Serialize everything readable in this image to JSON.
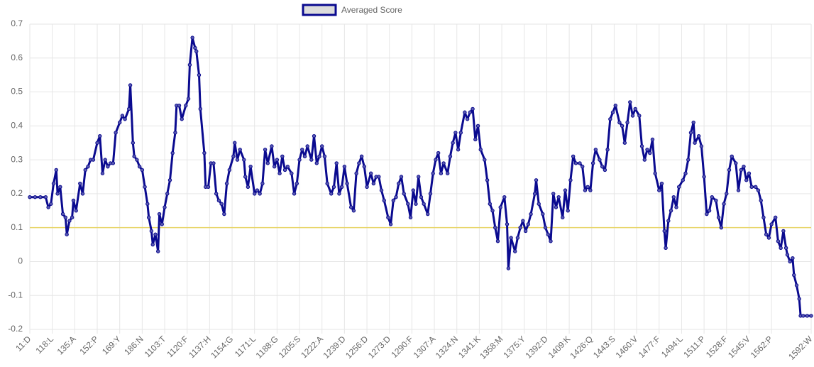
{
  "chart_data": {
    "type": "line",
    "series": [
      {
        "name": "Averaged Score",
        "color": "#0a0a8f",
        "fill": "#dcdcdc",
        "x": [
          1,
          5,
          9,
          13,
          15,
          17,
          19,
          21,
          22,
          24,
          26,
          28,
          29,
          31,
          33,
          34,
          36,
          39,
          41,
          43,
          45,
          47,
          49,
          52,
          54,
          56,
          58,
          60,
          62,
          64,
          66,
          69,
          71,
          73,
          76,
          77,
          79,
          80,
          82,
          84,
          86,
          88,
          90,
          91,
          93,
          94,
          96,
          98,
          99,
          101,
          103,
          105,
          107,
          109,
          111,
          112,
          114,
          116,
          119,
          121,
          122,
          124,
          126,
          127,
          129,
          130,
          133,
          134,
          136,
          138,
          140,
          142,
          144,
          146,
          148,
          150,
          152,
          155,
          156,
          158,
          160,
          163,
          164,
          166,
          168,
          171,
          173,
          175,
          177,
          179,
          181,
          184,
          186,
          188,
          190,
          192,
          194,
          196,
          199,
          201,
          203,
          205,
          207,
          209,
          211,
          214,
          216,
          218,
          220,
          222,
          224,
          226,
          229,
          231,
          233,
          235,
          237,
          239,
          241,
          244,
          246,
          248,
          250,
          252,
          254,
          256,
          259,
          261,
          263,
          265,
          267,
          269,
          272,
          274,
          276,
          278,
          280,
          282,
          284,
          287,
          289,
          291,
          293,
          295,
          297,
          299,
          302,
          304,
          306,
          308,
          310,
          312,
          314,
          317,
          319,
          321,
          323,
          325,
          327,
          330,
          332,
          334,
          336,
          338,
          340,
          342,
          345,
          347,
          349,
          351,
          353,
          355,
          357,
          360,
          362,
          363,
          365,
          368,
          370,
          372,
          374,
          376,
          378,
          380,
          383,
          384,
          386,
          389,
          391,
          393,
          395,
          397,
          399,
          401,
          404,
          406,
          408,
          410,
          412,
          414,
          417,
          419,
          421,
          423,
          425,
          427,
          429,
          432,
          434,
          436,
          438,
          440,
          442,
          444,
          447,
          449,
          451,
          453,
          455,
          457,
          459,
          462,
          464,
          466,
          468,
          470,
          472,
          474,
          477,
          479,
          481,
          482,
          484,
          486,
          488,
          490,
          492,
          495,
          497,
          499,
          501,
          503,
          504,
          507,
          509,
          511,
          513,
          515,
          517,
          520,
          522,
          524,
          526,
          528,
          530,
          532,
          535,
          537,
          539,
          541,
          543,
          545,
          547,
          550,
          552,
          554,
          556,
          558,
          560,
          562,
          565,
          567,
          569,
          571,
          573,
          574,
          576,
          578,
          579,
          581,
          583,
          584,
          586,
          589,
          592
        ],
        "values": [
          0.19,
          0.19,
          0.19,
          0.19,
          0.16,
          0.17,
          0.23,
          0.27,
          0.2,
          0.22,
          0.14,
          0.13,
          0.08,
          0.12,
          0.13,
          0.18,
          0.15,
          0.23,
          0.2,
          0.27,
          0.28,
          0.3,
          0.3,
          0.35,
          0.37,
          0.26,
          0.3,
          0.28,
          0.29,
          0.29,
          0.38,
          0.41,
          0.43,
          0.42,
          0.45,
          0.52,
          0.35,
          0.31,
          0.3,
          0.28,
          0.27,
          0.22,
          0.17,
          0.13,
          0.09,
          0.05,
          0.08,
          0.03,
          0.14,
          0.11,
          0.16,
          0.2,
          0.24,
          0.32,
          0.38,
          0.46,
          0.46,
          0.42,
          0.46,
          0.48,
          0.58,
          0.66,
          0.63,
          0.62,
          0.55,
          0.45,
          0.32,
          0.22,
          0.22,
          0.29,
          0.29,
          0.2,
          0.18,
          0.17,
          0.14,
          0.23,
          0.27,
          0.31,
          0.35,
          0.3,
          0.33,
          0.3,
          0.25,
          0.22,
          0.28,
          0.2,
          0.21,
          0.2,
          0.23,
          0.33,
          0.29,
          0.34,
          0.28,
          0.3,
          0.26,
          0.31,
          0.27,
          0.28,
          0.26,
          0.2,
          0.23,
          0.3,
          0.33,
          0.31,
          0.34,
          0.3,
          0.37,
          0.29,
          0.31,
          0.34,
          0.31,
          0.23,
          0.2,
          0.22,
          0.29,
          0.2,
          0.22,
          0.28,
          0.23,
          0.16,
          0.15,
          0.26,
          0.29,
          0.31,
          0.28,
          0.22,
          0.26,
          0.23,
          0.25,
          0.25,
          0.21,
          0.18,
          0.13,
          0.11,
          0.18,
          0.19,
          0.23,
          0.25,
          0.2,
          0.17,
          0.13,
          0.21,
          0.17,
          0.25,
          0.19,
          0.17,
          0.14,
          0.2,
          0.26,
          0.3,
          0.32,
          0.26,
          0.29,
          0.26,
          0.31,
          0.35,
          0.38,
          0.33,
          0.38,
          0.44,
          0.42,
          0.44,
          0.45,
          0.36,
          0.4,
          0.33,
          0.3,
          0.24,
          0.17,
          0.15,
          0.1,
          0.06,
          0.16,
          0.19,
          0.11,
          -0.02,
          0.07,
          0.03,
          0.07,
          0.1,
          0.12,
          0.09,
          0.11,
          0.14,
          0.2,
          0.24,
          0.17,
          0.14,
          0.1,
          0.08,
          0.06,
          0.2,
          0.16,
          0.19,
          0.13,
          0.21,
          0.15,
          0.24,
          0.31,
          0.29,
          0.29,
          0.28,
          0.21,
          0.22,
          0.21,
          0.29,
          0.33,
          0.3,
          0.28,
          0.27,
          0.33,
          0.42,
          0.44,
          0.46,
          0.41,
          0.4,
          0.35,
          0.41,
          0.47,
          0.43,
          0.45,
          0.43,
          0.34,
          0.3,
          0.33,
          0.32,
          0.36,
          0.26,
          0.21,
          0.23,
          0.09,
          0.04,
          0.12,
          0.15,
          0.19,
          0.16,
          0.22,
          0.24,
          0.26,
          0.3,
          0.38,
          0.41,
          0.35,
          0.37,
          0.34,
          0.25,
          0.14,
          0.15,
          0.19,
          0.18,
          0.13,
          0.1,
          0.17,
          0.2,
          0.27,
          0.31,
          0.29,
          0.21,
          0.27,
          0.28,
          0.24,
          0.26,
          0.22,
          0.22,
          0.21,
          0.18,
          0.13,
          0.08,
          0.07,
          0.11,
          0.13,
          0.06,
          0.04,
          0.09,
          0.04,
          0.02,
          0,
          0.01,
          -0.04,
          -0.07,
          -0.11,
          -0.16,
          -0.16,
          -0.16,
          -0.16
        ]
      }
    ],
    "xlim": [
      1,
      592
    ],
    "xticks": [
      {
        "value": 1,
        "label": "11:D"
      },
      {
        "value": 18,
        "label": "118:L"
      },
      {
        "value": 35,
        "label": "135:A"
      },
      {
        "value": 52,
        "label": "152:P"
      },
      {
        "value": 69,
        "label": "169:Y"
      },
      {
        "value": 86,
        "label": "186:N"
      },
      {
        "value": 103,
        "label": "1103:T"
      },
      {
        "value": 120,
        "label": "1120:F"
      },
      {
        "value": 137,
        "label": "1137:H"
      },
      {
        "value": 154,
        "label": "1154:G"
      },
      {
        "value": 171,
        "label": "1171:L"
      },
      {
        "value": 188,
        "label": "1188:G"
      },
      {
        "value": 205,
        "label": "1205:S"
      },
      {
        "value": 222,
        "label": "1222:A"
      },
      {
        "value": 239,
        "label": "1239:D"
      },
      {
        "value": 256,
        "label": "1256:D"
      },
      {
        "value": 273,
        "label": "1273:D"
      },
      {
        "value": 290,
        "label": "1290:F"
      },
      {
        "value": 307,
        "label": "1307:A"
      },
      {
        "value": 324,
        "label": "1324:N"
      },
      {
        "value": 341,
        "label": "1341:K"
      },
      {
        "value": 358,
        "label": "1358:M"
      },
      {
        "value": 375,
        "label": "1375:Y"
      },
      {
        "value": 392,
        "label": "1392:D"
      },
      {
        "value": 409,
        "label": "1409:K"
      },
      {
        "value": 426,
        "label": "1426:Q"
      },
      {
        "value": 443,
        "label": "1443:S"
      },
      {
        "value": 460,
        "label": "1460:V"
      },
      {
        "value": 477,
        "label": "1477:F"
      },
      {
        "value": 494,
        "label": "1494:L"
      },
      {
        "value": 511,
        "label": "1511:P"
      },
      {
        "value": 528,
        "label": "1528:F"
      },
      {
        "value": 545,
        "label": "1545:V"
      },
      {
        "value": 562,
        "label": "1562:P"
      },
      {
        "value": 592,
        "label": "1592:W"
      }
    ],
    "ylim": [
      -0.2,
      0.7
    ],
    "yticks": [
      0.7,
      0.6,
      0.5,
      0.4,
      0.3,
      0.2,
      0.1,
      0,
      -0.1,
      -0.2
    ],
    "reference_line": {
      "value": 0.1,
      "color": "#e8d56a"
    },
    "grid": true,
    "legend": "top"
  }
}
